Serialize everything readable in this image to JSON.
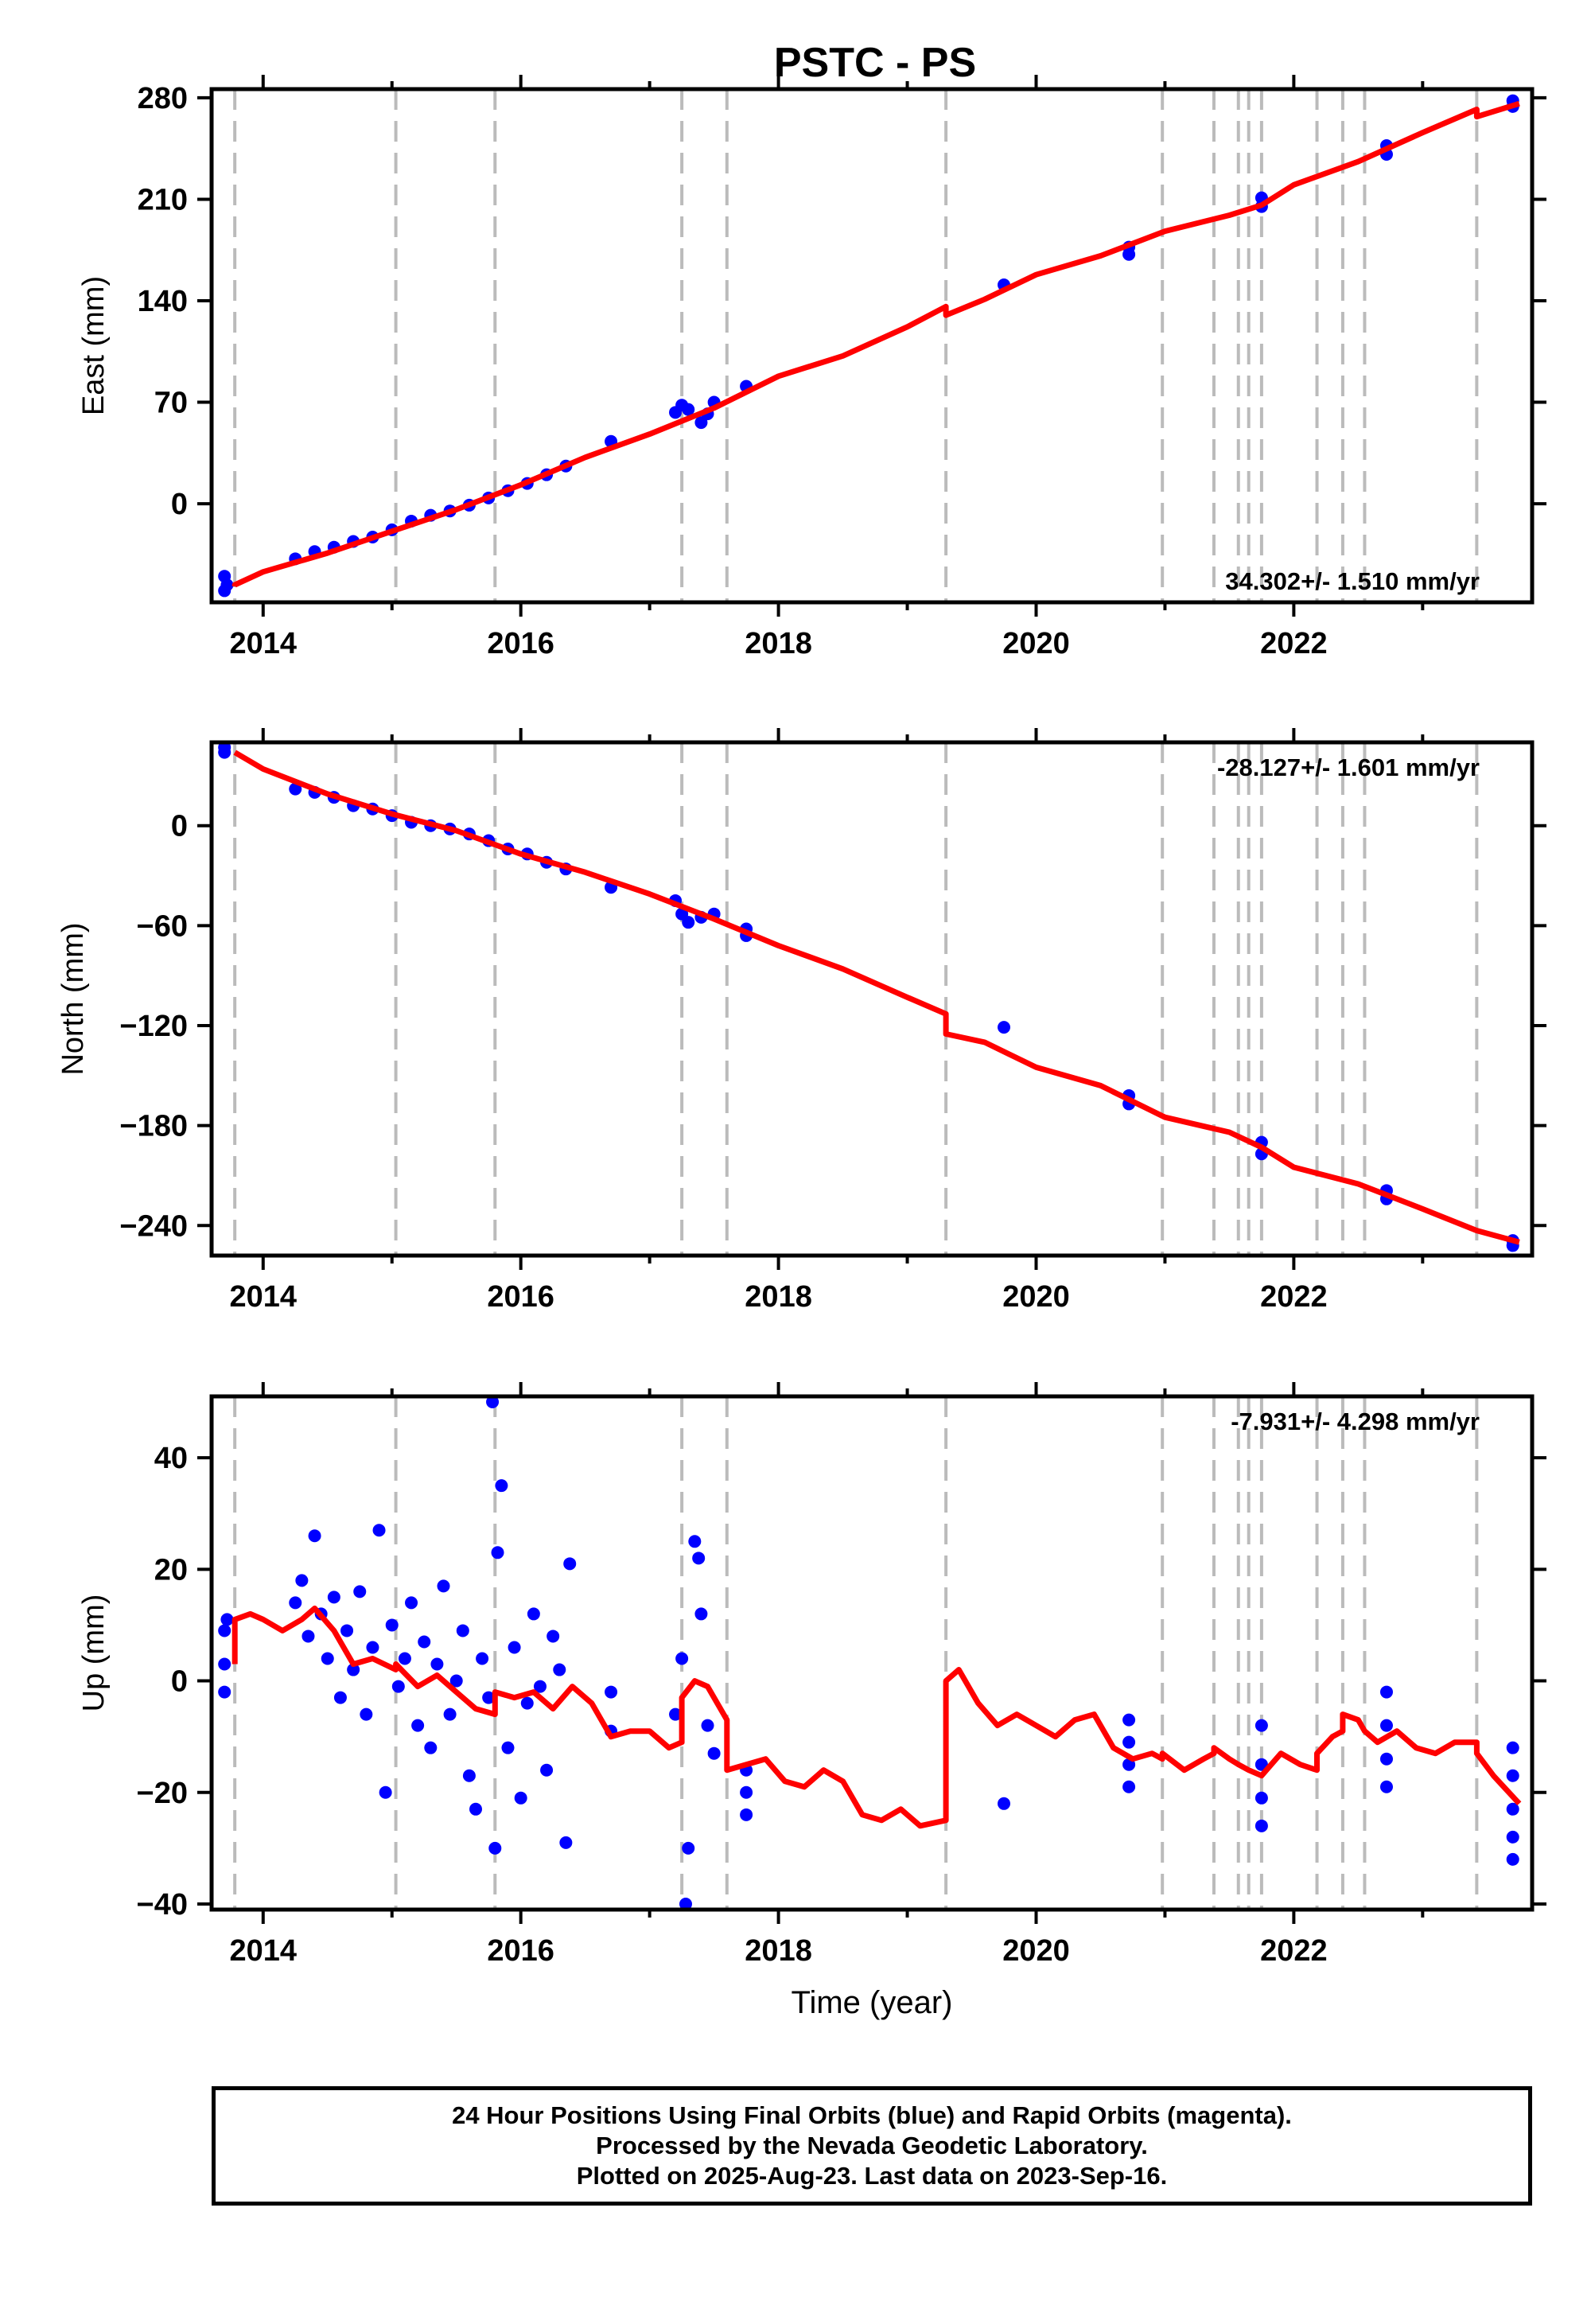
{
  "title": "PSTC - PS",
  "footer": {
    "line1": "24 Hour Positions Using Final Orbits (blue) and Rapid Orbits (magenta).",
    "line2": "Processed by the Nevada Geodetic Laboratory.",
    "line3": "Plotted on 2025-Aug-23. Last data on 2023-Sep-16."
  },
  "colors": {
    "final_points": "#0000ff",
    "model": "#ff0000",
    "steps": "#bbbbbb"
  },
  "chart_data": [
    {
      "type": "scatter",
      "panel": "east",
      "title": "PSTC - PS",
      "ylabel": "East (mm)",
      "xlabel": "",
      "rate_label": "34.302+/- 1.510 mm/yr",
      "xlim": [
        2013.6,
        2023.85
      ],
      "ylim": [
        -68,
        286
      ],
      "yticks": [
        0,
        70,
        140,
        210,
        280
      ],
      "xticks": [
        2014,
        2016,
        2018,
        2020,
        2022
      ],
      "grid": false,
      "step_epochs": [
        2013.78,
        2015.03,
        2015.8,
        2017.25,
        2017.6,
        2019.3,
        2020.98,
        2021.38,
        2021.57,
        2021.65,
        2021.75,
        2022.18,
        2022.38,
        2022.55,
        2023.42
      ],
      "points_final": [
        [
          2013.7,
          -50
        ],
        [
          2013.7,
          -60
        ],
        [
          2013.72,
          -56
        ],
        [
          2014.25,
          -38
        ],
        [
          2014.4,
          -33
        ],
        [
          2014.55,
          -30
        ],
        [
          2014.7,
          -26
        ],
        [
          2014.85,
          -23
        ],
        [
          2015.0,
          -18
        ],
        [
          2015.15,
          -12
        ],
        [
          2015.3,
          -8
        ],
        [
          2015.45,
          -5
        ],
        [
          2015.6,
          -1
        ],
        [
          2015.75,
          4
        ],
        [
          2015.9,
          9
        ],
        [
          2016.05,
          14
        ],
        [
          2016.2,
          20
        ],
        [
          2016.35,
          26
        ],
        [
          2016.7,
          43
        ],
        [
          2017.2,
          63
        ],
        [
          2017.25,
          68
        ],
        [
          2017.3,
          65
        ],
        [
          2017.4,
          56
        ],
        [
          2017.45,
          62
        ],
        [
          2017.5,
          70
        ],
        [
          2017.75,
          81
        ],
        [
          2019.75,
          151
        ],
        [
          2020.72,
          172
        ],
        [
          2020.72,
          177
        ],
        [
          2021.75,
          205
        ],
        [
          2021.75,
          211
        ],
        [
          2022.72,
          241
        ],
        [
          2022.72,
          247
        ],
        [
          2023.7,
          274
        ],
        [
          2023.7,
          278
        ]
      ],
      "model": [
        [
          2013.78,
          -57
        ],
        [
          2013.78,
          -56
        ],
        [
          2014.0,
          -47
        ],
        [
          2014.5,
          -34
        ],
        [
          2015.0,
          -19
        ],
        [
          2015.5,
          -4
        ],
        [
          2016.0,
          13
        ],
        [
          2016.5,
          32
        ],
        [
          2017.0,
          48
        ],
        [
          2017.5,
          66
        ],
        [
          2018.0,
          88
        ],
        [
          2018.5,
          102
        ],
        [
          2019.0,
          122
        ],
        [
          2019.3,
          136
        ],
        [
          2019.3,
          130
        ],
        [
          2019.6,
          141
        ],
        [
          2020.0,
          158
        ],
        [
          2020.5,
          171
        ],
        [
          2021.0,
          188
        ],
        [
          2021.5,
          199
        ],
        [
          2021.75,
          206
        ],
        [
          2022.0,
          220
        ],
        [
          2022.5,
          236
        ],
        [
          2023.0,
          256
        ],
        [
          2023.42,
          272
        ],
        [
          2023.42,
          267
        ],
        [
          2023.75,
          276
        ]
      ]
    },
    {
      "type": "scatter",
      "panel": "north",
      "ylabel": "North (mm)",
      "xlabel": "",
      "rate_label": "-28.127+/- 1.601 mm/yr",
      "xlim": [
        2013.6,
        2023.85
      ],
      "ylim": [
        -258,
        50
      ],
      "yticks": [
        -240,
        -180,
        -120,
        -60,
        0
      ],
      "xticks": [
        2014,
        2016,
        2018,
        2020,
        2022
      ],
      "grid": false,
      "step_epochs": [
        2013.78,
        2015.03,
        2015.8,
        2017.25,
        2017.6,
        2019.3,
        2020.98,
        2021.38,
        2021.57,
        2021.65,
        2021.75,
        2022.18,
        2022.38,
        2022.55,
        2023.42
      ],
      "points_final": [
        [
          2013.7,
          47
        ],
        [
          2013.7,
          44
        ],
        [
          2014.25,
          22
        ],
        [
          2014.4,
          20
        ],
        [
          2014.55,
          17
        ],
        [
          2014.7,
          12
        ],
        [
          2014.85,
          10
        ],
        [
          2015.0,
          6
        ],
        [
          2015.15,
          2
        ],
        [
          2015.3,
          0
        ],
        [
          2015.45,
          -2
        ],
        [
          2015.6,
          -5
        ],
        [
          2015.75,
          -9
        ],
        [
          2015.9,
          -14
        ],
        [
          2016.05,
          -17
        ],
        [
          2016.2,
          -22
        ],
        [
          2016.35,
          -26
        ],
        [
          2016.7,
          -37
        ],
        [
          2017.2,
          -45
        ],
        [
          2017.25,
          -53
        ],
        [
          2017.3,
          -58
        ],
        [
          2017.4,
          -55
        ],
        [
          2017.5,
          -53
        ],
        [
          2017.75,
          -62
        ],
        [
          2017.75,
          -66
        ],
        [
          2019.75,
          -121
        ],
        [
          2020.72,
          -162
        ],
        [
          2020.72,
          -167
        ],
        [
          2021.75,
          -190
        ],
        [
          2021.75,
          -197
        ],
        [
          2022.72,
          -219
        ],
        [
          2022.72,
          -224
        ],
        [
          2023.7,
          -249
        ],
        [
          2023.7,
          -252
        ]
      ],
      "model": [
        [
          2013.78,
          44
        ],
        [
          2014.0,
          34
        ],
        [
          2014.5,
          19
        ],
        [
          2015.0,
          7
        ],
        [
          2015.5,
          -3
        ],
        [
          2016.0,
          -17
        ],
        [
          2016.5,
          -28
        ],
        [
          2017.0,
          -41
        ],
        [
          2017.5,
          -56
        ],
        [
          2018.0,
          -72
        ],
        [
          2018.5,
          -86
        ],
        [
          2019.0,
          -103
        ],
        [
          2019.3,
          -113
        ],
        [
          2019.3,
          -125
        ],
        [
          2019.6,
          -130
        ],
        [
          2020.0,
          -145
        ],
        [
          2020.5,
          -156
        ],
        [
          2021.0,
          -175
        ],
        [
          2021.5,
          -184
        ],
        [
          2021.75,
          -193
        ],
        [
          2022.0,
          -205
        ],
        [
          2022.5,
          -215
        ],
        [
          2023.0,
          -230
        ],
        [
          2023.42,
          -243
        ],
        [
          2023.75,
          -250
        ]
      ]
    },
    {
      "type": "scatter",
      "panel": "up",
      "ylabel": "Up (mm)",
      "xlabel": "Time (year)",
      "rate_label": "-7.931+/- 4.298 mm/yr",
      "xlim": [
        2013.6,
        2023.85
      ],
      "ylim": [
        -41,
        51
      ],
      "yticks": [
        -40,
        -20,
        0,
        20,
        40
      ],
      "xticks": [
        2014,
        2016,
        2018,
        2020,
        2022
      ],
      "grid": false,
      "step_epochs": [
        2013.78,
        2015.03,
        2015.8,
        2017.25,
        2017.6,
        2019.3,
        2020.98,
        2021.38,
        2021.57,
        2021.65,
        2021.75,
        2022.18,
        2022.38,
        2022.55,
        2023.42
      ],
      "points_final": [
        [
          2013.7,
          -2
        ],
        [
          2013.7,
          3
        ],
        [
          2013.7,
          9
        ],
        [
          2013.72,
          11
        ],
        [
          2014.25,
          14
        ],
        [
          2014.3,
          18
        ],
        [
          2014.35,
          8
        ],
        [
          2014.4,
          26
        ],
        [
          2014.45,
          12
        ],
        [
          2014.5,
          4
        ],
        [
          2014.55,
          15
        ],
        [
          2014.6,
          -3
        ],
        [
          2014.65,
          9
        ],
        [
          2014.7,
          2
        ],
        [
          2014.75,
          16
        ],
        [
          2014.8,
          -6
        ],
        [
          2014.85,
          6
        ],
        [
          2014.9,
          27
        ],
        [
          2014.95,
          -20
        ],
        [
          2015.0,
          10
        ],
        [
          2015.05,
          -1
        ],
        [
          2015.1,
          4
        ],
        [
          2015.15,
          14
        ],
        [
          2015.2,
          -8
        ],
        [
          2015.25,
          7
        ],
        [
          2015.3,
          -12
        ],
        [
          2015.35,
          3
        ],
        [
          2015.4,
          17
        ],
        [
          2015.45,
          -6
        ],
        [
          2015.5,
          0
        ],
        [
          2015.55,
          9
        ],
        [
          2015.6,
          -17
        ],
        [
          2015.65,
          -23
        ],
        [
          2015.7,
          4
        ],
        [
          2015.75,
          -3
        ],
        [
          2015.78,
          50
        ],
        [
          2015.8,
          -30
        ],
        [
          2015.82,
          23
        ],
        [
          2015.85,
          35
        ],
        [
          2015.9,
          -12
        ],
        [
          2015.95,
          6
        ],
        [
          2016.0,
          -21
        ],
        [
          2016.05,
          -4
        ],
        [
          2016.1,
          12
        ],
        [
          2016.15,
          -1
        ],
        [
          2016.2,
          -16
        ],
        [
          2016.25,
          8
        ],
        [
          2016.3,
          2
        ],
        [
          2016.35,
          -29
        ],
        [
          2016.38,
          21
        ],
        [
          2016.7,
          -2
        ],
        [
          2016.7,
          -9
        ],
        [
          2017.2,
          -6
        ],
        [
          2017.25,
          4
        ],
        [
          2017.28,
          -40
        ],
        [
          2017.3,
          -30
        ],
        [
          2017.35,
          25
        ],
        [
          2017.38,
          22
        ],
        [
          2017.4,
          12
        ],
        [
          2017.45,
          -8
        ],
        [
          2017.5,
          -13
        ],
        [
          2017.75,
          -16
        ],
        [
          2017.75,
          -20
        ],
        [
          2017.75,
          -24
        ],
        [
          2019.75,
          -22
        ],
        [
          2020.72,
          -7
        ],
        [
          2020.72,
          -11
        ],
        [
          2020.72,
          -15
        ],
        [
          2020.72,
          -19
        ],
        [
          2021.75,
          -8
        ],
        [
          2021.75,
          -15
        ],
        [
          2021.75,
          -21
        ],
        [
          2021.75,
          -26
        ],
        [
          2022.72,
          -2
        ],
        [
          2022.72,
          -8
        ],
        [
          2022.72,
          -14
        ],
        [
          2022.72,
          -19
        ],
        [
          2023.7,
          -12
        ],
        [
          2023.7,
          -17
        ],
        [
          2023.7,
          -23
        ],
        [
          2023.7,
          -28
        ],
        [
          2023.7,
          -32
        ]
      ],
      "model": [
        [
          2013.78,
          3
        ],
        [
          2013.78,
          11
        ],
        [
          2013.9,
          12
        ],
        [
          2014.0,
          11
        ],
        [
          2014.15,
          9
        ],
        [
          2014.3,
          11
        ],
        [
          2014.4,
          13
        ],
        [
          2014.55,
          9
        ],
        [
          2014.7,
          3
        ],
        [
          2014.85,
          4
        ],
        [
          2015.03,
          2
        ],
        [
          2015.03,
          3
        ],
        [
          2015.2,
          -1
        ],
        [
          2015.35,
          1
        ],
        [
          2015.5,
          -2
        ],
        [
          2015.65,
          -5
        ],
        [
          2015.8,
          -6
        ],
        [
          2015.8,
          -2
        ],
        [
          2015.95,
          -3
        ],
        [
          2016.1,
          -2
        ],
        [
          2016.25,
          -5
        ],
        [
          2016.4,
          -1
        ],
        [
          2016.55,
          -4
        ],
        [
          2016.7,
          -10
        ],
        [
          2016.85,
          -9
        ],
        [
          2017.0,
          -9
        ],
        [
          2017.15,
          -12
        ],
        [
          2017.25,
          -11
        ],
        [
          2017.25,
          -3
        ],
        [
          2017.35,
          0
        ],
        [
          2017.45,
          -1
        ],
        [
          2017.6,
          -7
        ],
        [
          2017.6,
          -16
        ],
        [
          2017.75,
          -15
        ],
        [
          2017.9,
          -14
        ],
        [
          2018.05,
          -18
        ],
        [
          2018.2,
          -19
        ],
        [
          2018.35,
          -16
        ],
        [
          2018.5,
          -18
        ],
        [
          2018.65,
          -24
        ],
        [
          2018.8,
          -25
        ],
        [
          2018.95,
          -23
        ],
        [
          2019.1,
          -26
        ],
        [
          2019.3,
          -25
        ],
        [
          2019.3,
          0
        ],
        [
          2019.4,
          2
        ],
        [
          2019.55,
          -4
        ],
        [
          2019.7,
          -8
        ],
        [
          2019.85,
          -6
        ],
        [
          2020.0,
          -8
        ],
        [
          2020.15,
          -10
        ],
        [
          2020.3,
          -7
        ],
        [
          2020.45,
          -6
        ],
        [
          2020.6,
          -12
        ],
        [
          2020.75,
          -14
        ],
        [
          2020.9,
          -13
        ],
        [
          2020.98,
          -14
        ],
        [
          2020.98,
          -13
        ],
        [
          2021.15,
          -16
        ],
        [
          2021.3,
          -14
        ],
        [
          2021.38,
          -13
        ],
        [
          2021.38,
          -12
        ],
        [
          2021.5,
          -14
        ],
        [
          2021.57,
          -15
        ],
        [
          2021.65,
          -16
        ],
        [
          2021.75,
          -17
        ],
        [
          2021.9,
          -13
        ],
        [
          2022.05,
          -15
        ],
        [
          2022.18,
          -16
        ],
        [
          2022.18,
          -13
        ],
        [
          2022.3,
          -10
        ],
        [
          2022.38,
          -9
        ],
        [
          2022.38,
          -6
        ],
        [
          2022.5,
          -7
        ],
        [
          2022.55,
          -9
        ],
        [
          2022.65,
          -11
        ],
        [
          2022.8,
          -9
        ],
        [
          2022.95,
          -12
        ],
        [
          2023.1,
          -13
        ],
        [
          2023.25,
          -11
        ],
        [
          2023.42,
          -11
        ],
        [
          2023.42,
          -13
        ],
        [
          2023.55,
          -17
        ],
        [
          2023.75,
          -22
        ]
      ]
    }
  ]
}
